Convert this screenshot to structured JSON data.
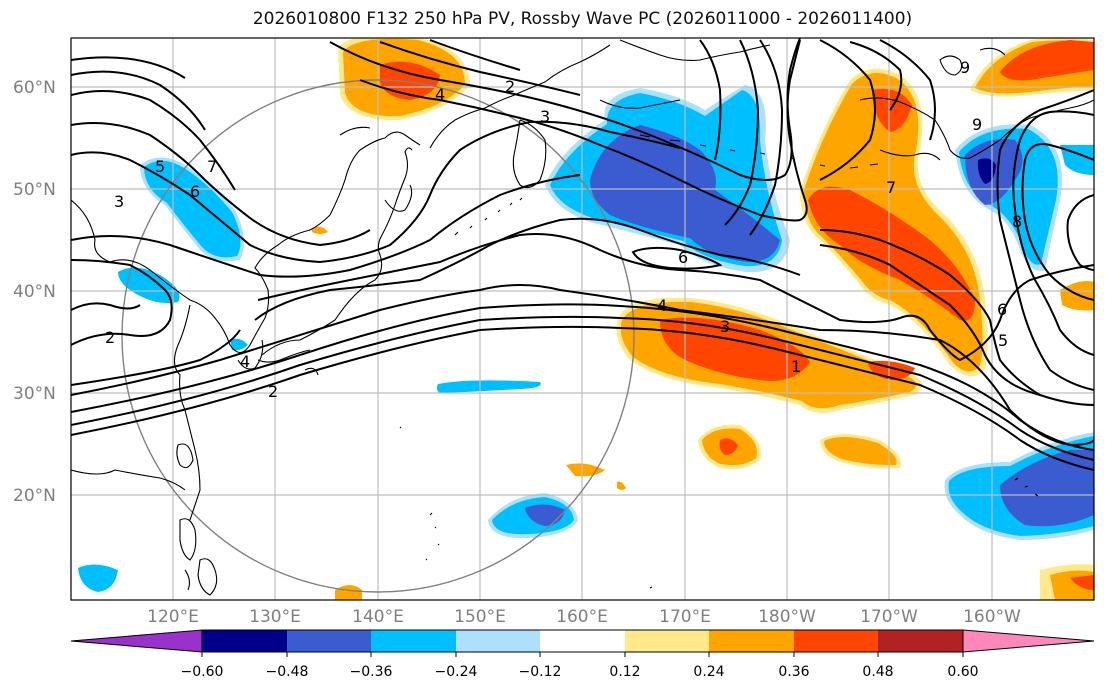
{
  "title": "2026010800 F132 250 hPa PV, Rossby Wave PC (2026011000 - 2026011400)",
  "lat_labels": [
    "60°N",
    "50°N",
    "40°N",
    "30°N",
    "20°N"
  ],
  "lon_labels": [
    "120°E",
    "130°E",
    "140°E",
    "150°E",
    "160°E",
    "170°E",
    "180°W",
    "170°W",
    "160°W"
  ],
  "contour_labels": [
    "2",
    "3",
    "4",
    "5",
    "6",
    "7",
    "8",
    "9",
    "1"
  ],
  "colorbar": {
    "ticks": [
      "−0.60",
      "−0.48",
      "−0.36",
      "−0.24",
      "−0.12",
      "0.12",
      "0.24",
      "0.36",
      "0.48",
      "0.60"
    ],
    "colors": [
      "#9932cc",
      "#00008b",
      "#3b5bd0",
      "#00bfff",
      "#ade0fa",
      "#ffffff",
      "#ffe98a",
      "#ffa500",
      "#ff4500",
      "#b22222",
      "#ff88bb"
    ]
  },
  "palette": {
    "neg_strong": "#3b5bd0",
    "neg_medium": "#00bfff",
    "neg_weak": "#ade0fa",
    "neg_extreme": "#00008b",
    "pos_weak": "#ffe98a",
    "pos_medium": "#ffa500",
    "pos_strong": "#ff4500",
    "gridline": "#bdbdbd"
  }
}
